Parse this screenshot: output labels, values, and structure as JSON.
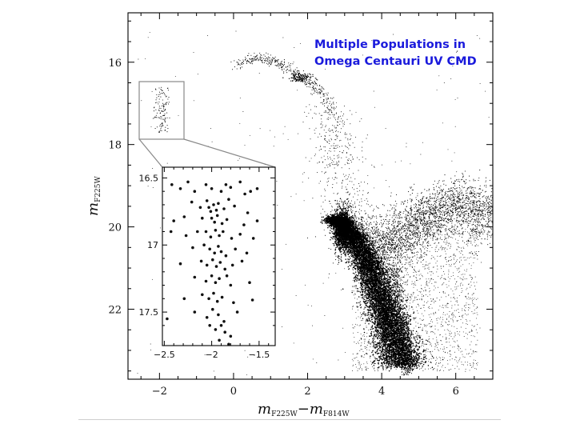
{
  "chart_data": [
    {
      "type": "scatter",
      "annotation": [
        "Multiple Populations in",
        "Omega Centauri UV CMD"
      ],
      "xlabel": {
        "main": "m",
        "sub1": "F225W",
        "dash": "−m",
        "sub2": "F814W"
      },
      "ylabel": {
        "main": "m",
        "sub": "F225W"
      },
      "xlim": [
        -2.85,
        7.0
      ],
      "ylim": [
        23.7,
        14.8
      ],
      "x_ticks": [
        -2,
        0,
        2,
        4,
        6
      ],
      "y_ticks": [
        16,
        18,
        20,
        22
      ],
      "grid": false,
      "legend": "none",
      "colors": {
        "points": "#000000",
        "annotation": "#1a1adc",
        "box": "#888888"
      },
      "series": [
        {
          "values_note": "",
          "features": [
            {
              "kind": "horizontal-branch",
              "points": [
                [
                  0.1,
                  16.05
                ],
                [
                  0.6,
                  15.9
                ],
                [
                  1.0,
                  15.95
                ],
                [
                  1.4,
                  16.1
                ],
                [
                  1.8,
                  16.35
                ],
                [
                  2.2,
                  16.6
                ],
                [
                  2.5,
                  16.9
                ],
                [
                  2.7,
                  17.3
                ]
              ]
            },
            {
              "kind": "extreme-hb-clump",
              "x_center": -1.95,
              "y_range": [
                16.6,
                17.7
              ]
            },
            {
              "kind": "main-sequence-turnoff",
              "points": [
                [
                  2.7,
                  19.8
                ],
                [
                  2.9,
                  19.9
                ],
                [
                  3.3,
                  20.3
                ],
                [
                  3.7,
                  21.0
                ],
                [
                  4.0,
                  21.8
                ],
                [
                  4.3,
                  22.6
                ],
                [
                  4.6,
                  23.4
                ]
              ]
            },
            {
              "kind": "subgiant-redgiant-branch",
              "points": [
                [
                  3.0,
                  19.9
                ],
                [
                  4.2,
                  20.2
                ],
                [
                  5.0,
                  19.6
                ],
                [
                  6.0,
                  19.2
                ],
                [
                  7.0,
                  19.5
                ]
              ]
            }
          ]
        }
      ]
    },
    {
      "type": "scatter",
      "xlim": [
        -2.52,
        -1.33
      ],
      "ylim": [
        17.75,
        16.42
      ],
      "x_ticks": [
        -2.5,
        -2,
        -1.5
      ],
      "x_tick_labels": [
        "−2.5",
        "−2",
        "−1.5"
      ],
      "y_ticks": [
        16.5,
        17,
        17.5
      ],
      "y_tick_labels": [
        "16.5",
        "17",
        "17.5"
      ],
      "series": [
        {
          "points": [
            [
              -2.42,
              16.55
            ],
            [
              -2.33,
              16.58
            ],
            [
              -2.25,
              16.53
            ],
            [
              -2.18,
              16.6
            ],
            [
              -2.06,
              16.55
            ],
            [
              -2.0,
              16.58
            ],
            [
              -1.9,
              16.6
            ],
            [
              -1.85,
              16.55
            ],
            [
              -1.8,
              16.57
            ],
            [
              -1.7,
              16.53
            ],
            [
              -1.65,
              16.62
            ],
            [
              -1.59,
              16.6
            ],
            [
              -1.52,
              16.58
            ],
            [
              -2.21,
              16.68
            ],
            [
              -2.12,
              16.72
            ],
            [
              -2.05,
              16.67
            ],
            [
              -2.03,
              16.72
            ],
            [
              -2.01,
              16.75
            ],
            [
              -1.98,
              16.7
            ],
            [
              -1.95,
              16.74
            ],
            [
              -1.93,
              16.69
            ],
            [
              -1.87,
              16.73
            ],
            [
              -1.82,
              16.66
            ],
            [
              -1.76,
              16.71
            ],
            [
              -1.62,
              16.76
            ],
            [
              -2.4,
              16.82
            ],
            [
              -2.29,
              16.79
            ],
            [
              -2.1,
              16.8
            ],
            [
              -2.0,
              16.8
            ],
            [
              -1.97,
              16.83
            ],
            [
              -1.94,
              16.78
            ],
            [
              -1.89,
              16.84
            ],
            [
              -1.84,
              16.81
            ],
            [
              -1.66,
              16.85
            ],
            [
              -1.52,
              16.82
            ],
            [
              -2.43,
              16.9
            ],
            [
              -2.27,
              16.93
            ],
            [
              -2.15,
              16.9
            ],
            [
              -2.06,
              16.9
            ],
            [
              -2.01,
              16.94
            ],
            [
              -1.96,
              16.89
            ],
            [
              -1.92,
              16.93
            ],
            [
              -1.88,
              16.9
            ],
            [
              -1.79,
              16.95
            ],
            [
              -1.7,
              16.92
            ],
            [
              -1.56,
              16.95
            ],
            [
              -2.2,
              17.02
            ],
            [
              -2.08,
              17.0
            ],
            [
              -2.02,
              17.03
            ],
            [
              -1.97,
              17.06
            ],
            [
              -1.93,
              17.01
            ],
            [
              -1.9,
              17.05
            ],
            [
              -1.85,
              17.08
            ],
            [
              -1.75,
              17.03
            ],
            [
              -1.63,
              17.06
            ],
            [
              -2.33,
              17.14
            ],
            [
              -2.11,
              17.12
            ],
            [
              -2.05,
              17.15
            ],
            [
              -1.99,
              17.11
            ],
            [
              -1.95,
              17.16
            ],
            [
              -1.91,
              17.13
            ],
            [
              -1.86,
              17.18
            ],
            [
              -1.78,
              17.15
            ],
            [
              -1.68,
              17.12
            ],
            [
              -2.18,
              17.24
            ],
            [
              -2.06,
              17.27
            ],
            [
              -2.0,
              17.23
            ],
            [
              -1.96,
              17.28
            ],
            [
              -1.92,
              17.25
            ],
            [
              -1.84,
              17.23
            ],
            [
              -1.8,
              17.3
            ],
            [
              -1.6,
              17.28
            ],
            [
              -2.29,
              17.4
            ],
            [
              -2.1,
              17.37
            ],
            [
              -2.03,
              17.4
            ],
            [
              -1.98,
              17.36
            ],
            [
              -1.94,
              17.42
            ],
            [
              -1.89,
              17.39
            ],
            [
              -1.77,
              17.43
            ],
            [
              -1.57,
              17.41
            ],
            [
              -2.47,
              17.55
            ],
            [
              -2.18,
              17.5
            ],
            [
              -2.05,
              17.54
            ],
            [
              -1.99,
              17.48
            ],
            [
              -1.93,
              17.52
            ],
            [
              -1.87,
              17.57
            ],
            [
              -1.73,
              17.5
            ],
            [
              -2.02,
              17.6
            ],
            [
              -1.96,
              17.63
            ],
            [
              -1.9,
              17.6
            ],
            [
              -1.86,
              17.65
            ],
            [
              -1.8,
              17.68
            ],
            [
              -1.92,
              17.71
            ],
            [
              -1.82,
              17.74
            ]
          ]
        }
      ]
    }
  ]
}
